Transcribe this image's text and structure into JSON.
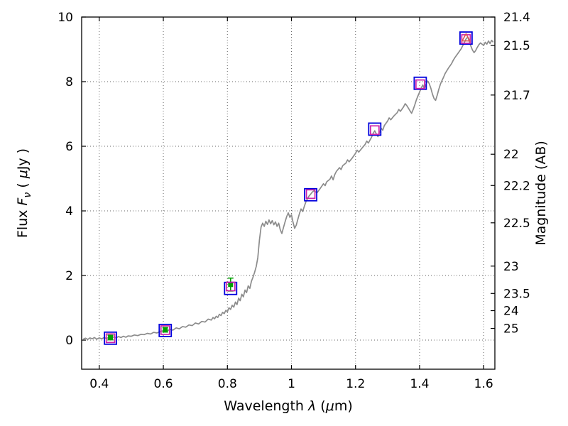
{
  "chart_data": {
    "type": "line",
    "title": "",
    "xlabel": "Wavelength λ (μm)",
    "ylabel_left": "Flux Fν ( μJy )",
    "ylabel_right": "Magnitude (AB)",
    "xlabel_parts": [
      {
        "t": "Wavelength  "
      },
      {
        "t": "λ",
        "s": "i"
      },
      {
        "t": " ("
      },
      {
        "t": "μ",
        "s": "i"
      },
      {
        "t": "m)"
      }
    ],
    "ylabel_left_parts": [
      {
        "t": "Flux  "
      },
      {
        "t": "F",
        "s": "i"
      },
      {
        "t": "ν",
        "s": "sub"
      },
      {
        "t": "  ( "
      },
      {
        "t": "μ",
        "s": "i"
      },
      {
        "t": "Jy )"
      }
    ],
    "ylabel_right_parts": [
      {
        "t": "Magnitude (AB)"
      }
    ],
    "xlim": [
      0.345,
      1.635
    ],
    "ylim": [
      -0.9,
      10.0
    ],
    "grid": "dotted",
    "legend": "none",
    "x_ticks": [
      {
        "v": 0.4,
        "label": "0.4"
      },
      {
        "v": 0.6,
        "label": "0.6"
      },
      {
        "v": 0.8,
        "label": "0.8"
      },
      {
        "v": 1.0,
        "label": "1"
      },
      {
        "v": 1.2,
        "label": "1.2"
      },
      {
        "v": 1.4,
        "label": "1.4"
      },
      {
        "v": 1.6,
        "label": "1.6"
      }
    ],
    "y_ticks_left": [
      {
        "v": 0,
        "label": "0"
      },
      {
        "v": 2,
        "label": "2"
      },
      {
        "v": 4,
        "label": "4"
      },
      {
        "v": 6,
        "label": "6"
      },
      {
        "v": 8,
        "label": "8"
      },
      {
        "v": 10,
        "label": "10"
      }
    ],
    "y_ticks_right": [
      {
        "label": "21.4",
        "flux": 10.0
      },
      {
        "label": "21.5",
        "flux": 9.12
      },
      {
        "label": "21.7",
        "flux": 7.586
      },
      {
        "label": "22",
        "flux": 5.754
      },
      {
        "label": "22.2",
        "flux": 4.786
      },
      {
        "label": "22.5",
        "flux": 3.631
      },
      {
        "label": "23",
        "flux": 2.291
      },
      {
        "label": "23.5",
        "flux": 1.445
      },
      {
        "label": "24",
        "flux": 0.912
      },
      {
        "label": "25",
        "flux": 0.363
      }
    ],
    "colors": {
      "spectrum": "#8c8c8c",
      "blue_square": "#0000dd",
      "magenta_square": "#cc22aa",
      "green_point": "#00a000",
      "red_triangle": "#dd5555",
      "grid": "#666666",
      "axis": "#000000",
      "background": "#ffffff"
    },
    "spectrum": [
      [
        0.35,
        0.03
      ],
      [
        0.357,
        0.06
      ],
      [
        0.364,
        0.02
      ],
      [
        0.371,
        0.07
      ],
      [
        0.378,
        0.04
      ],
      [
        0.385,
        0.08
      ],
      [
        0.392,
        0.03
      ],
      [
        0.4,
        0.07
      ],
      [
        0.408,
        0.04
      ],
      [
        0.415,
        0.08
      ],
      [
        0.423,
        0.05
      ],
      [
        0.43,
        0.09
      ],
      [
        0.438,
        0.05
      ],
      [
        0.445,
        0.1
      ],
      [
        0.453,
        0.07
      ],
      [
        0.46,
        0.11
      ],
      [
        0.468,
        0.08
      ],
      [
        0.475,
        0.12
      ],
      [
        0.483,
        0.09
      ],
      [
        0.49,
        0.13
      ],
      [
        0.5,
        0.12
      ],
      [
        0.51,
        0.16
      ],
      [
        0.52,
        0.14
      ],
      [
        0.53,
        0.18
      ],
      [
        0.54,
        0.17
      ],
      [
        0.55,
        0.21
      ],
      [
        0.56,
        0.19
      ],
      [
        0.57,
        0.24
      ],
      [
        0.58,
        0.22
      ],
      [
        0.59,
        0.27
      ],
      [
        0.6,
        0.29
      ],
      [
        0.61,
        0.27
      ],
      [
        0.62,
        0.33
      ],
      [
        0.63,
        0.31
      ],
      [
        0.64,
        0.38
      ],
      [
        0.65,
        0.35
      ],
      [
        0.66,
        0.42
      ],
      [
        0.67,
        0.4
      ],
      [
        0.68,
        0.47
      ],
      [
        0.69,
        0.45
      ],
      [
        0.7,
        0.53
      ],
      [
        0.71,
        0.5
      ],
      [
        0.72,
        0.58
      ],
      [
        0.73,
        0.56
      ],
      [
        0.74,
        0.65
      ],
      [
        0.75,
        0.62
      ],
      [
        0.755,
        0.7
      ],
      [
        0.76,
        0.66
      ],
      [
        0.765,
        0.74
      ],
      [
        0.77,
        0.7
      ],
      [
        0.775,
        0.8
      ],
      [
        0.78,
        0.76
      ],
      [
        0.785,
        0.86
      ],
      [
        0.79,
        0.82
      ],
      [
        0.795,
        0.92
      ],
      [
        0.8,
        0.88
      ],
      [
        0.805,
        1.0
      ],
      [
        0.81,
        0.95
      ],
      [
        0.815,
        1.08
      ],
      [
        0.82,
        1.02
      ],
      [
        0.825,
        1.18
      ],
      [
        0.83,
        1.1
      ],
      [
        0.835,
        1.3
      ],
      [
        0.84,
        1.22
      ],
      [
        0.845,
        1.42
      ],
      [
        0.85,
        1.34
      ],
      [
        0.855,
        1.55
      ],
      [
        0.86,
        1.47
      ],
      [
        0.865,
        1.68
      ],
      [
        0.87,
        1.6
      ],
      [
        0.875,
        1.82
      ],
      [
        0.88,
        1.95
      ],
      [
        0.885,
        2.1
      ],
      [
        0.89,
        2.28
      ],
      [
        0.895,
        2.55
      ],
      [
        0.9,
        3.1
      ],
      [
        0.905,
        3.5
      ],
      [
        0.91,
        3.62
      ],
      [
        0.915,
        3.52
      ],
      [
        0.92,
        3.68
      ],
      [
        0.925,
        3.58
      ],
      [
        0.93,
        3.72
      ],
      [
        0.935,
        3.6
      ],
      [
        0.94,
        3.7
      ],
      [
        0.945,
        3.57
      ],
      [
        0.95,
        3.66
      ],
      [
        0.955,
        3.52
      ],
      [
        0.96,
        3.62
      ],
      [
        0.965,
        3.42
      ],
      [
        0.97,
        3.3
      ],
      [
        0.975,
        3.48
      ],
      [
        0.98,
        3.66
      ],
      [
        0.985,
        3.82
      ],
      [
        0.99,
        3.94
      ],
      [
        0.995,
        3.8
      ],
      [
        1.0,
        3.88
      ],
      [
        1.005,
        3.64
      ],
      [
        1.01,
        3.46
      ],
      [
        1.015,
        3.56
      ],
      [
        1.02,
        3.74
      ],
      [
        1.025,
        3.92
      ],
      [
        1.03,
        4.06
      ],
      [
        1.035,
        3.98
      ],
      [
        1.04,
        4.14
      ],
      [
        1.045,
        4.28
      ],
      [
        1.05,
        4.38
      ],
      [
        1.055,
        4.46
      ],
      [
        1.06,
        4.52
      ],
      [
        1.065,
        4.58
      ],
      [
        1.07,
        4.62
      ],
      [
        1.08,
        4.56
      ],
      [
        1.09,
        4.7
      ],
      [
        1.1,
        4.84
      ],
      [
        1.105,
        4.78
      ],
      [
        1.11,
        4.9
      ],
      [
        1.12,
        4.98
      ],
      [
        1.125,
        5.08
      ],
      [
        1.13,
        4.96
      ],
      [
        1.135,
        5.12
      ],
      [
        1.14,
        5.22
      ],
      [
        1.15,
        5.34
      ],
      [
        1.155,
        5.28
      ],
      [
        1.16,
        5.4
      ],
      [
        1.17,
        5.48
      ],
      [
        1.175,
        5.58
      ],
      [
        1.18,
        5.52
      ],
      [
        1.19,
        5.64
      ],
      [
        1.2,
        5.78
      ],
      [
        1.205,
        5.88
      ],
      [
        1.21,
        5.82
      ],
      [
        1.22,
        5.94
      ],
      [
        1.23,
        6.06
      ],
      [
        1.235,
        6.16
      ],
      [
        1.24,
        6.1
      ],
      [
        1.25,
        6.28
      ],
      [
        1.255,
        6.4
      ],
      [
        1.26,
        6.48
      ],
      [
        1.265,
        6.38
      ],
      [
        1.27,
        6.3
      ],
      [
        1.275,
        6.42
      ],
      [
        1.28,
        6.56
      ],
      [
        1.285,
        6.5
      ],
      [
        1.29,
        6.64
      ],
      [
        1.3,
        6.78
      ],
      [
        1.305,
        6.88
      ],
      [
        1.31,
        6.82
      ],
      [
        1.32,
        6.94
      ],
      [
        1.33,
        7.04
      ],
      [
        1.335,
        7.14
      ],
      [
        1.34,
        7.08
      ],
      [
        1.35,
        7.22
      ],
      [
        1.355,
        7.32
      ],
      [
        1.36,
        7.26
      ],
      [
        1.365,
        7.18
      ],
      [
        1.37,
        7.1
      ],
      [
        1.375,
        7.02
      ],
      [
        1.38,
        7.14
      ],
      [
        1.385,
        7.28
      ],
      [
        1.39,
        7.44
      ],
      [
        1.395,
        7.56
      ],
      [
        1.4,
        7.68
      ],
      [
        1.405,
        7.8
      ],
      [
        1.41,
        7.9
      ],
      [
        1.415,
        7.78
      ],
      [
        1.42,
        7.92
      ],
      [
        1.425,
        8.02
      ],
      [
        1.43,
        7.94
      ],
      [
        1.435,
        7.8
      ],
      [
        1.44,
        7.62
      ],
      [
        1.445,
        7.48
      ],
      [
        1.45,
        7.42
      ],
      [
        1.455,
        7.58
      ],
      [
        1.46,
        7.76
      ],
      [
        1.465,
        7.92
      ],
      [
        1.47,
        8.04
      ],
      [
        1.475,
        8.14
      ],
      [
        1.48,
        8.26
      ],
      [
        1.49,
        8.42
      ],
      [
        1.5,
        8.56
      ],
      [
        1.505,
        8.66
      ],
      [
        1.51,
        8.74
      ],
      [
        1.52,
        8.88
      ],
      [
        1.53,
        9.02
      ],
      [
        1.535,
        9.12
      ],
      [
        1.54,
        9.22
      ],
      [
        1.545,
        9.32
      ],
      [
        1.55,
        9.38
      ],
      [
        1.555,
        9.26
      ],
      [
        1.56,
        9.1
      ],
      [
        1.565,
        8.98
      ],
      [
        1.57,
        8.9
      ],
      [
        1.575,
        8.96
      ],
      [
        1.58,
        9.06
      ],
      [
        1.585,
        9.14
      ],
      [
        1.59,
        9.2
      ],
      [
        1.6,
        9.12
      ],
      [
        1.605,
        9.22
      ],
      [
        1.61,
        9.16
      ],
      [
        1.615,
        9.26
      ],
      [
        1.62,
        9.18
      ],
      [
        1.625,
        9.28
      ],
      [
        1.63,
        9.22
      ]
    ],
    "photometry_blue_squares": [
      [
        0.435,
        0.06
      ],
      [
        0.606,
        0.3
      ],
      [
        0.81,
        1.6
      ],
      [
        1.06,
        4.5
      ],
      [
        1.26,
        6.53
      ],
      [
        1.402,
        7.95
      ],
      [
        1.545,
        9.35
      ]
    ],
    "photometry_magenta_squares": [
      [
        0.435,
        0.06
      ],
      [
        0.606,
        0.31
      ],
      [
        0.81,
        1.66
      ],
      [
        1.06,
        4.52
      ],
      [
        1.26,
        6.5
      ],
      [
        1.402,
        7.92
      ],
      [
        1.545,
        9.32
      ]
    ],
    "green_points": {
      "points": [
        [
          0.435,
          0.08
        ],
        [
          0.606,
          0.32
        ],
        [
          0.81,
          1.72
        ]
      ],
      "yerr": [
        0.07,
        0.07,
        0.2
      ]
    },
    "red_triangle": [
      1.545,
      9.36
    ]
  }
}
